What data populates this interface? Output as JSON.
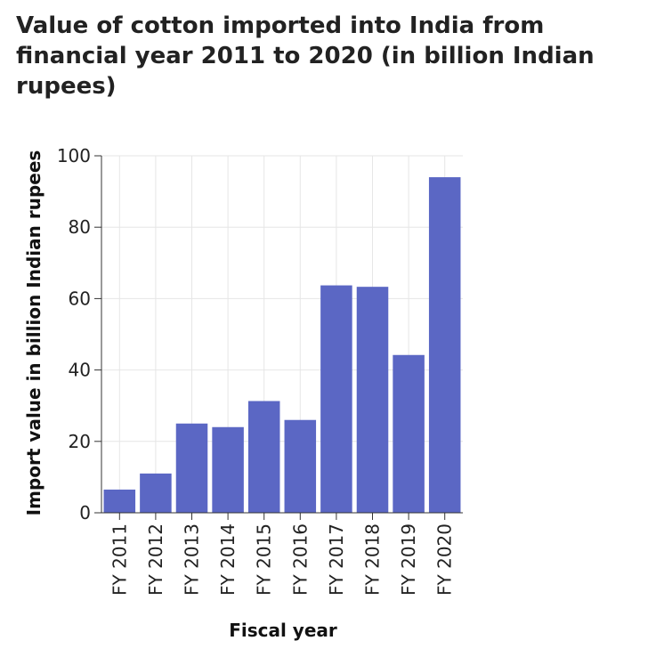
{
  "chart_data": {
    "type": "bar",
    "title": "Value of cotton imported into India from financial year 2011 to 2020 (in billion Indian rupees)",
    "xlabel": "Fiscal year",
    "ylabel": "Import value in billion Indian rupees",
    "categories": [
      "FY 2011",
      "FY 2012",
      "FY 2013",
      "FY 2014",
      "FY 2015",
      "FY 2016",
      "FY 2017",
      "FY 2018",
      "FY 2019",
      "FY 2020"
    ],
    "values": [
      6.5,
      11,
      25,
      24,
      31.3,
      26,
      63.7,
      63.3,
      44.2,
      94
    ],
    "ylim": [
      0,
      100
    ],
    "yticks": [
      0,
      20,
      40,
      60,
      80,
      100
    ],
    "grid": true,
    "bar_color": "#5b67c4",
    "grid_color": "#e6e6e6"
  }
}
